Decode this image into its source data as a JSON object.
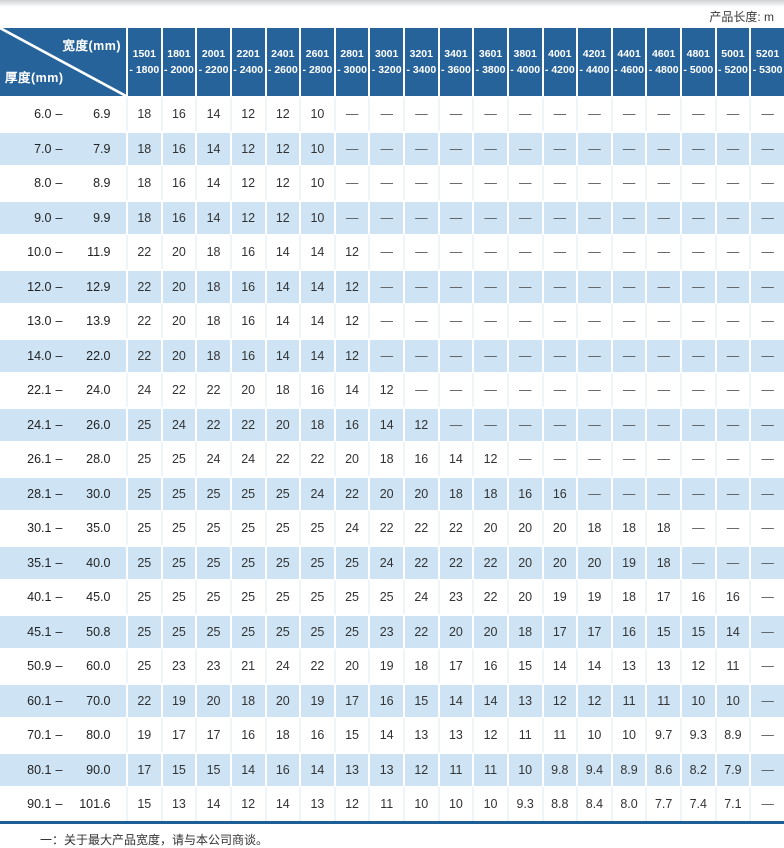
{
  "header": {
    "product_length_label": "产品长度: m"
  },
  "table": {
    "corner": {
      "width_label": "宽度(mm)",
      "thickness_label": "厚度(mm)"
    },
    "range_separator": "–",
    "columns": [
      {
        "from": "1501",
        "to": "- 1800"
      },
      {
        "from": "1801",
        "to": "- 2000"
      },
      {
        "from": "2001",
        "to": "- 2200"
      },
      {
        "from": "2201",
        "to": "- 2400"
      },
      {
        "from": "2401",
        "to": "- 2600"
      },
      {
        "from": "2601",
        "to": "- 2800"
      },
      {
        "from": "2801",
        "to": "- 3000"
      },
      {
        "from": "3001",
        "to": "- 3200"
      },
      {
        "from": "3201",
        "to": "- 3400"
      },
      {
        "from": "3401",
        "to": "- 3600"
      },
      {
        "from": "3601",
        "to": "- 3800"
      },
      {
        "from": "3801",
        "to": "- 4000"
      },
      {
        "from": "4001",
        "to": "- 4200"
      },
      {
        "from": "4201",
        "to": "- 4400"
      },
      {
        "from": "4401",
        "to": "- 4600"
      },
      {
        "from": "4601",
        "to": "- 4800"
      },
      {
        "from": "4801",
        "to": "- 5000"
      },
      {
        "from": "5001",
        "to": "- 5200"
      },
      {
        "from": "5201",
        "to": "- 5300"
      }
    ],
    "rows": [
      {
        "thickness_from": "6.0",
        "thickness_to": "6.9",
        "values": [
          "18",
          "16",
          "14",
          "12",
          "12",
          "10",
          "—",
          "—",
          "—",
          "—",
          "—",
          "—",
          "—",
          "—",
          "—",
          "—",
          "—",
          "—",
          "—"
        ]
      },
      {
        "thickness_from": "7.0",
        "thickness_to": "7.9",
        "values": [
          "18",
          "16",
          "14",
          "12",
          "12",
          "10",
          "—",
          "—",
          "—",
          "—",
          "—",
          "—",
          "—",
          "—",
          "—",
          "—",
          "—",
          "—",
          "—"
        ]
      },
      {
        "thickness_from": "8.0",
        "thickness_to": "8.9",
        "values": [
          "18",
          "16",
          "14",
          "12",
          "12",
          "10",
          "—",
          "—",
          "—",
          "—",
          "—",
          "—",
          "—",
          "—",
          "—",
          "—",
          "—",
          "—",
          "—"
        ]
      },
      {
        "thickness_from": "9.0",
        "thickness_to": "9.9",
        "values": [
          "18",
          "16",
          "14",
          "12",
          "12",
          "10",
          "—",
          "—",
          "—",
          "—",
          "—",
          "—",
          "—",
          "—",
          "—",
          "—",
          "—",
          "—",
          "—"
        ]
      },
      {
        "thickness_from": "10.0",
        "thickness_to": "11.9",
        "values": [
          "22",
          "20",
          "18",
          "16",
          "14",
          "14",
          "12",
          "—",
          "—",
          "—",
          "—",
          "—",
          "—",
          "—",
          "—",
          "—",
          "—",
          "—",
          "—"
        ]
      },
      {
        "thickness_from": "12.0",
        "thickness_to": "12.9",
        "values": [
          "22",
          "20",
          "18",
          "16",
          "14",
          "14",
          "12",
          "—",
          "—",
          "—",
          "—",
          "—",
          "—",
          "—",
          "—",
          "—",
          "—",
          "—",
          "—"
        ]
      },
      {
        "thickness_from": "13.0",
        "thickness_to": "13.9",
        "values": [
          "22",
          "20",
          "18",
          "16",
          "14",
          "14",
          "12",
          "—",
          "—",
          "—",
          "—",
          "—",
          "—",
          "—",
          "—",
          "—",
          "—",
          "—",
          "—"
        ]
      },
      {
        "thickness_from": "14.0",
        "thickness_to": "22.0",
        "values": [
          "22",
          "20",
          "18",
          "16",
          "14",
          "14",
          "12",
          "—",
          "—",
          "—",
          "—",
          "—",
          "—",
          "—",
          "—",
          "—",
          "—",
          "—",
          "—"
        ]
      },
      {
        "thickness_from": "22.1",
        "thickness_to": "24.0",
        "values": [
          "24",
          "22",
          "22",
          "20",
          "18",
          "16",
          "14",
          "12",
          "—",
          "—",
          "—",
          "—",
          "—",
          "—",
          "—",
          "—",
          "—",
          "—",
          "—"
        ]
      },
      {
        "thickness_from": "24.1",
        "thickness_to": "26.0",
        "values": [
          "25",
          "24",
          "22",
          "22",
          "20",
          "18",
          "16",
          "14",
          "12",
          "—",
          "—",
          "—",
          "—",
          "—",
          "—",
          "—",
          "—",
          "—",
          "—"
        ]
      },
      {
        "thickness_from": "26.1",
        "thickness_to": "28.0",
        "values": [
          "25",
          "25",
          "24",
          "24",
          "22",
          "22",
          "20",
          "18",
          "16",
          "14",
          "12",
          "—",
          "—",
          "—",
          "—",
          "—",
          "—",
          "—",
          "—"
        ]
      },
      {
        "thickness_from": "28.1",
        "thickness_to": "30.0",
        "values": [
          "25",
          "25",
          "25",
          "25",
          "25",
          "24",
          "22",
          "20",
          "20",
          "18",
          "18",
          "16",
          "16",
          "—",
          "—",
          "—",
          "—",
          "—",
          "—"
        ]
      },
      {
        "thickness_from": "30.1",
        "thickness_to": "35.0",
        "values": [
          "25",
          "25",
          "25",
          "25",
          "25",
          "25",
          "24",
          "22",
          "22",
          "22",
          "20",
          "20",
          "20",
          "18",
          "18",
          "18",
          "—",
          "—",
          "—"
        ]
      },
      {
        "thickness_from": "35.1",
        "thickness_to": "40.0",
        "values": [
          "25",
          "25",
          "25",
          "25",
          "25",
          "25",
          "25",
          "24",
          "22",
          "22",
          "22",
          "20",
          "20",
          "20",
          "19",
          "18",
          "—",
          "—",
          "—"
        ]
      },
      {
        "thickness_from": "40.1",
        "thickness_to": "45.0",
        "values": [
          "25",
          "25",
          "25",
          "25",
          "25",
          "25",
          "25",
          "25",
          "24",
          "23",
          "22",
          "20",
          "19",
          "19",
          "18",
          "17",
          "16",
          "16",
          "—"
        ]
      },
      {
        "thickness_from": "45.1",
        "thickness_to": "50.8",
        "values": [
          "25",
          "25",
          "25",
          "25",
          "25",
          "25",
          "25",
          "23",
          "22",
          "20",
          "20",
          "18",
          "17",
          "17",
          "16",
          "15",
          "15",
          "14",
          "—"
        ]
      },
      {
        "thickness_from": "50.9",
        "thickness_to": "60.0",
        "values": [
          "25",
          "23",
          "23",
          "21",
          "24",
          "22",
          "20",
          "19",
          "18",
          "17",
          "16",
          "15",
          "14",
          "14",
          "13",
          "13",
          "12",
          "11",
          "—"
        ]
      },
      {
        "thickness_from": "60.1",
        "thickness_to": "70.0",
        "values": [
          "22",
          "19",
          "20",
          "18",
          "20",
          "19",
          "17",
          "16",
          "15",
          "14",
          "14",
          "13",
          "12",
          "12",
          "11",
          "11",
          "10",
          "10",
          "—"
        ]
      },
      {
        "thickness_from": "70.1",
        "thickness_to": "80.0",
        "values": [
          "19",
          "17",
          "17",
          "16",
          "18",
          "16",
          "15",
          "14",
          "13",
          "13",
          "12",
          "11",
          "11",
          "10",
          "10",
          "9.7",
          "9.3",
          "8.9",
          "—"
        ]
      },
      {
        "thickness_from": "80.1",
        "thickness_to": "90.0",
        "values": [
          "17",
          "15",
          "15",
          "14",
          "16",
          "14",
          "13",
          "13",
          "12",
          "11",
          "11",
          "10",
          "9.8",
          "9.4",
          "8.9",
          "8.6",
          "8.2",
          "7.9",
          "—"
        ]
      },
      {
        "thickness_from": "90.1",
        "thickness_to": "101.6",
        "values": [
          "15",
          "13",
          "14",
          "12",
          "14",
          "13",
          "12",
          "11",
          "10",
          "10",
          "10",
          "9.3",
          "8.8",
          "8.4",
          "8.0",
          "7.7",
          "7.4",
          "7.1",
          "—"
        ]
      }
    ]
  },
  "footnote": {
    "text": "一：关于最大产品宽度，请与本公司商谈。"
  },
  "colors": {
    "header_blue": "#27639b",
    "row_blue": "#cee4f4",
    "rule_blue": "#1d5e97"
  }
}
